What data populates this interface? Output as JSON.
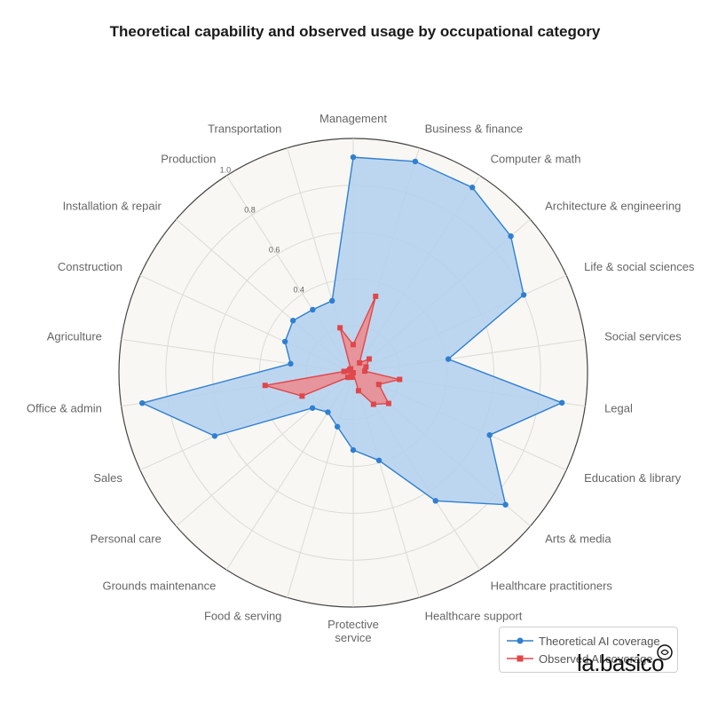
{
  "title": "Theoretical capability and observed usage by occupational category",
  "colors": {
    "theoretical": "#2f7fd1",
    "theoretical_fill": "#b3d0ee",
    "observed": "#e0464a",
    "observed_fill": "#ec8a8c",
    "background": "#f8f7f3",
    "grid": "#dcdcd6"
  },
  "chart_data": {
    "type": "radar",
    "title": "Theoretical capability and observed usage by occupational category",
    "rlim": [
      0,
      1.0
    ],
    "radial_ticks": [
      "0.4",
      "0.6",
      "0.8",
      "1.0"
    ],
    "radial_tick_values": [
      0.4,
      0.6,
      0.8,
      1.0
    ],
    "categories": [
      "Management",
      "Business & finance",
      "Computer & math",
      "Architecture & engineering",
      "Life & social sciences",
      "Social services",
      "Legal",
      "Education & library",
      "Arts & media",
      "Healthcare practitioners",
      "Healthcare support",
      "Protective service",
      "Food & serving",
      "Grounds maintenance",
      "Personal care",
      "Sales",
      "Office & admin",
      "Agriculture",
      "Construction",
      "Installation & repair",
      "Production",
      "Transportation"
    ],
    "series": [
      {
        "name": "Theoretical AI coverage",
        "values": [
          0.92,
          0.94,
          0.94,
          0.89,
          0.8,
          0.41,
          0.9,
          0.64,
          0.86,
          0.65,
          0.39,
          0.33,
          0.24,
          0.2,
          0.23,
          0.65,
          0.91,
          0.27,
          0.32,
          0.34,
          0.32,
          0.32
        ]
      },
      {
        "name": "Observed AI coverage",
        "values": [
          0.12,
          0.34,
          0.05,
          0.09,
          0.06,
          0.05,
          0.2,
          0.12,
          0.2,
          0.16,
          0.08,
          0.0,
          0.02,
          0.02,
          0.03,
          0.24,
          0.38,
          0.04,
          0.02,
          0.02,
          0.02,
          0.2
        ]
      }
    ],
    "legend_position": "bottom-right",
    "grid": true
  },
  "legend": {
    "items": [
      {
        "label": "Theoretical AI coverage"
      },
      {
        "label": "Observed AI coverage"
      }
    ]
  },
  "watermark": "la.basico"
}
